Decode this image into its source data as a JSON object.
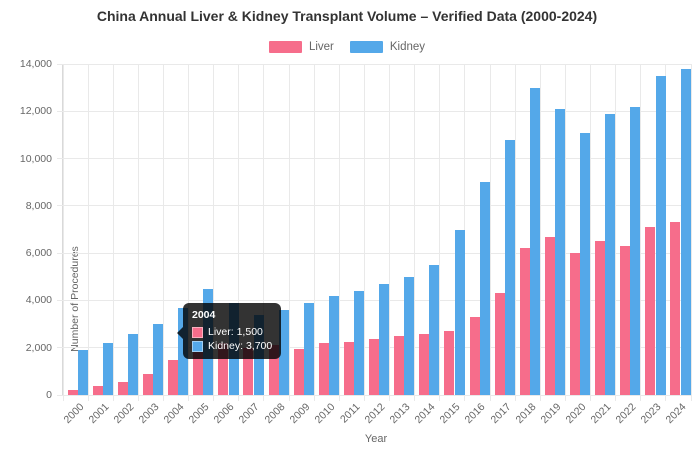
{
  "header": {
    "title": "China Annual Liver & Kidney Transplant Volume – Verified Data (2000-2024)"
  },
  "legend": {
    "items": [
      {
        "label": "Liver",
        "color": "#F66D8B"
      },
      {
        "label": "Kidney",
        "color": "#54A8E9"
      }
    ]
  },
  "axes": {
    "y_label": "Number of Procedures",
    "x_label": "Year",
    "y_ticks": [
      "0",
      "2,000",
      "4,000",
      "6,000",
      "8,000",
      "10,000",
      "12,000",
      "14,000"
    ]
  },
  "tooltip": {
    "title": "2004",
    "rows": [
      {
        "label": "Liver",
        "text": "Liver: 1,500",
        "color": "#F66D8B"
      },
      {
        "label": "Kidney",
        "text": "Kidney: 3,700",
        "color": "#54A8E9"
      }
    ]
  },
  "chart_data": {
    "type": "bar",
    "title": "China Annual Liver & Kidney Transplant Volume – Verified Data (2000-2024)",
    "xlabel": "Year",
    "ylabel": "Number of Procedures",
    "ylim": [
      0,
      14000
    ],
    "y_tick_step": 2000,
    "grid": true,
    "legend_position": "top",
    "categories": [
      "2000",
      "2001",
      "2002",
      "2003",
      "2004",
      "2005",
      "2006",
      "2007",
      "2008",
      "2009",
      "2010",
      "2011",
      "2012",
      "2013",
      "2014",
      "2015",
      "2016",
      "2017",
      "2018",
      "2019",
      "2020",
      "2021",
      "2022",
      "2023",
      "2024"
    ],
    "series": [
      {
        "name": "Liver",
        "color": "#F66D8B",
        "values": [
          200,
          400,
          550,
          900,
          1500,
          1900,
          2200,
          2000,
          2100,
          1950,
          2200,
          2250,
          2350,
          2500,
          2600,
          2700,
          3300,
          4300,
          6200,
          6700,
          6000,
          6500,
          6300,
          7100,
          7300
        ]
      },
      {
        "name": "Kidney",
        "color": "#54A8E9",
        "values": [
          1900,
          2200,
          2600,
          3000,
          3700,
          4500,
          3900,
          3400,
          3600,
          3900,
          4200,
          4400,
          4700,
          5000,
          5500,
          7000,
          9000,
          10800,
          13000,
          12100,
          11100,
          11900,
          12200,
          13500,
          13800
        ]
      }
    ],
    "tooltip_shown": {
      "category": "2004",
      "Liver": 1500,
      "Kidney": 3700
    }
  }
}
